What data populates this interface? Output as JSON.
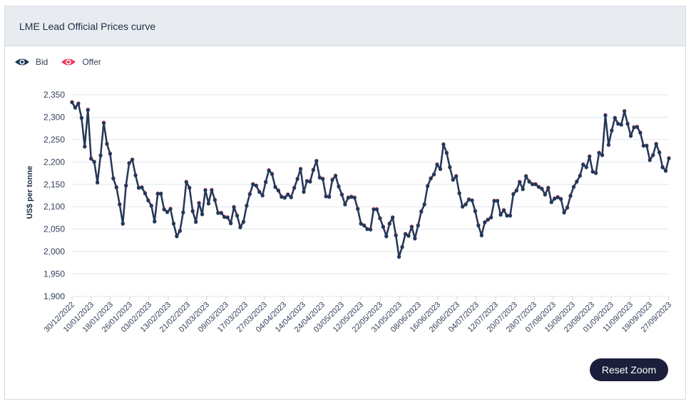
{
  "header": {
    "title": "LME Lead Official Prices curve"
  },
  "legend": [
    {
      "name": "Bid",
      "icon": "eye-icon",
      "color": "#1f3a5c"
    },
    {
      "name": "Offer",
      "icon": "eye-icon",
      "color": "#e8405a"
    }
  ],
  "controls": {
    "reset_zoom_label": "Reset Zoom"
  },
  "chart_data": {
    "type": "line",
    "title": "LME Lead Official Prices curve",
    "xlabel": "",
    "ylabel": "US$ per tonne",
    "ylim": [
      1900,
      2350
    ],
    "yticks": [
      1900,
      1950,
      2000,
      2050,
      2100,
      2150,
      2200,
      2250,
      2300,
      2350
    ],
    "ytick_labels": [
      "1,900",
      "1,950",
      "2,000",
      "2,050",
      "2,100",
      "2,150",
      "2,200",
      "2,250",
      "2,300",
      "2,350"
    ],
    "xtick_labels": [
      "30/12/2022",
      "10/01/2023",
      "18/01/2023",
      "26/01/2023",
      "03/02/2023",
      "13/02/2023",
      "21/02/2023",
      "01/03/2023",
      "09/03/2023",
      "17/03/2023",
      "27/03/2023",
      "04/04/2023",
      "14/04/2023",
      "24/04/2023",
      "03/05/2023",
      "12/05/2023",
      "22/05/2023",
      "31/05/2023",
      "08/06/2023",
      "16/06/2023",
      "26/06/2023",
      "04/07/2023",
      "12/07/2023",
      "20/07/2023",
      "28/07/2023",
      "07/08/2023",
      "15/08/2023",
      "23/08/2023",
      "01/09/2023",
      "11/09/2023",
      "19/09/2023",
      "27/09/2023"
    ],
    "grid": true,
    "legend_position": "top-left",
    "series": [
      {
        "name": "Bid",
        "color": "#1f3a5c",
        "values": [
          2333,
          2321,
          2330,
          2298,
          2234,
          2316,
          2207,
          2200,
          2154,
          2214,
          2287,
          2240,
          2218,
          2163,
          2143,
          2105,
          2062,
          2147,
          2197,
          2205,
          2170,
          2142,
          2143,
          2130,
          2114,
          2102,
          2067,
          2129,
          2129,
          2094,
          2088,
          2095,
          2062,
          2034,
          2046,
          2087,
          2155,
          2142,
          2090,
          2066,
          2108,
          2083,
          2137,
          2107,
          2137,
          2115,
          2086,
          2086,
          2077,
          2076,
          2063,
          2099,
          2080,
          2054,
          2066,
          2102,
          2128,
          2150,
          2147,
          2133,
          2125,
          2155,
          2181,
          2173,
          2144,
          2136,
          2122,
          2120,
          2127,
          2121,
          2142,
          2162,
          2184,
          2133,
          2157,
          2156,
          2182,
          2202,
          2165,
          2162,
          2123,
          2122,
          2160,
          2169,
          2145,
          2127,
          2105,
          2120,
          2122,
          2120,
          2095,
          2062,
          2058,
          2050,
          2049,
          2094,
          2094,
          2074,
          2055,
          2034,
          2062,
          2076,
          2036,
          1988,
          2010,
          2039,
          2035,
          2055,
          2029,
          2058,
          2089,
          2105,
          2146,
          2163,
          2172,
          2194,
          2184,
          2239,
          2220,
          2188,
          2160,
          2168,
          2130,
          2100,
          2105,
          2116,
          2114,
          2090,
          2058,
          2036,
          2065,
          2071,
          2076,
          2113,
          2113,
          2082,
          2092,
          2080,
          2080,
          2128,
          2136,
          2155,
          2139,
          2168,
          2156,
          2150,
          2150,
          2144,
          2140,
          2127,
          2142,
          2110,
          2118,
          2121,
          2117,
          2087,
          2098,
          2124,
          2144,
          2156,
          2169,
          2194,
          2188,
          2212,
          2178,
          2175,
          2220,
          2215,
          2304,
          2238,
          2270,
          2298,
          2285,
          2283,
          2313,
          2285,
          2258,
          2277,
          2278,
          2265,
          2236,
          2236,
          2204,
          2215,
          2240,
          2221,
          2188,
          2180,
          2208
        ]
      },
      {
        "name": "Offer",
        "color": "#e8405a",
        "values": [
          2334,
          2322,
          2331,
          2299,
          2235,
          2317,
          2208,
          2201,
          2155,
          2215,
          2288,
          2241,
          2219,
          2164,
          2144,
          2106,
          2063,
          2148,
          2198,
          2206,
          2171,
          2143,
          2144,
          2131,
          2115,
          2103,
          2068,
          2130,
          2130,
          2095,
          2089,
          2096,
          2063,
          2035,
          2047,
          2088,
          2156,
          2143,
          2091,
          2067,
          2109,
          2084,
          2138,
          2108,
          2138,
          2116,
          2087,
          2087,
          2078,
          2077,
          2064,
          2100,
          2081,
          2055,
          2067,
          2103,
          2129,
          2151,
          2148,
          2134,
          2126,
          2156,
          2182,
          2174,
          2145,
          2137,
          2123,
          2121,
          2128,
          2122,
          2143,
          2163,
          2185,
          2134,
          2158,
          2157,
          2183,
          2203,
          2166,
          2163,
          2124,
          2123,
          2161,
          2170,
          2146,
          2128,
          2106,
          2121,
          2123,
          2121,
          2096,
          2063,
          2059,
          2051,
          2050,
          2095,
          2095,
          2075,
          2056,
          2035,
          2063,
          2077,
          2037,
          1989,
          2011,
          2040,
          2036,
          2056,
          2030,
          2059,
          2090,
          2106,
          2147,
          2164,
          2173,
          2195,
          2185,
          2240,
          2221,
          2189,
          2161,
          2169,
          2131,
          2101,
          2106,
          2117,
          2115,
          2091,
          2059,
          2037,
          2066,
          2072,
          2077,
          2114,
          2114,
          2083,
          2093,
          2081,
          2081,
          2129,
          2137,
          2156,
          2140,
          2169,
          2157,
          2151,
          2151,
          2145,
          2141,
          2128,
          2143,
          2111,
          2119,
          2122,
          2118,
          2088,
          2099,
          2125,
          2145,
          2157,
          2170,
          2195,
          2189,
          2213,
          2179,
          2176,
          2221,
          2216,
          2305,
          2239,
          2271,
          2299,
          2286,
          2284,
          2314,
          2286,
          2259,
          2278,
          2279,
          2266,
          2237,
          2237,
          2205,
          2216,
          2241,
          2222,
          2189,
          2181,
          2209
        ]
      }
    ]
  }
}
